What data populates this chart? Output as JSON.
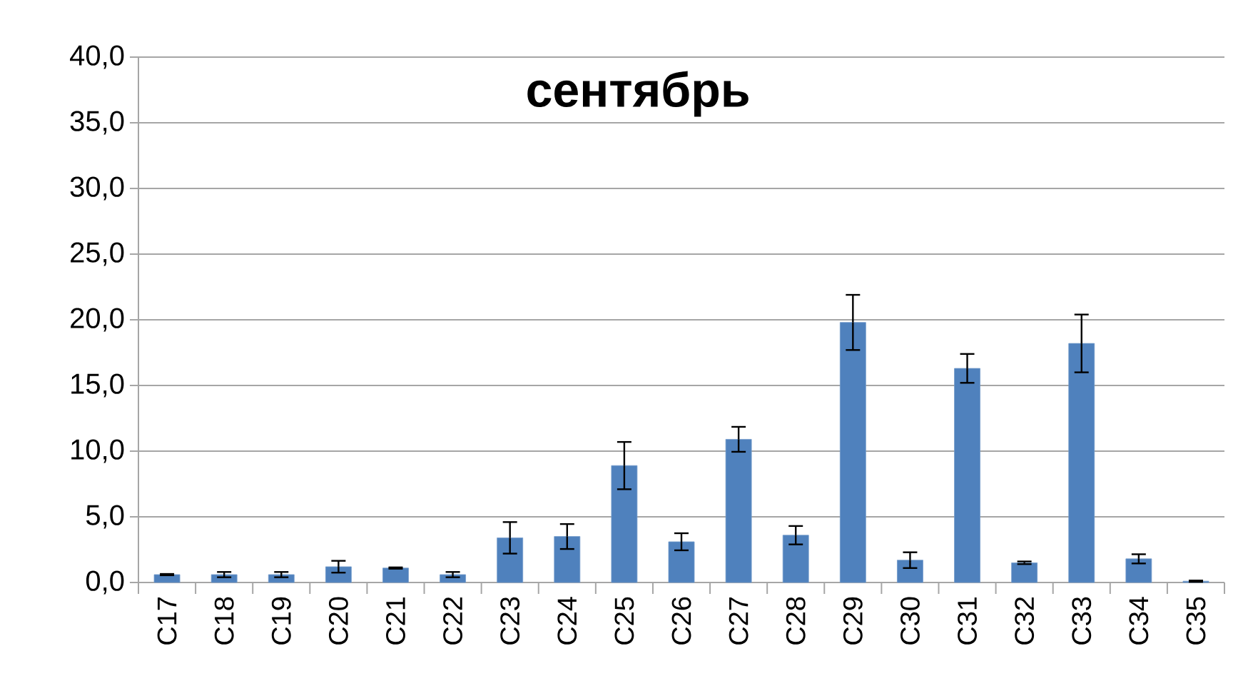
{
  "chart_data": {
    "type": "bar",
    "title": "сентябрь",
    "categories": [
      "C17",
      "C18",
      "C19",
      "C20",
      "C21",
      "C22",
      "C23",
      "C24",
      "C25",
      "C26",
      "C27",
      "C28",
      "C29",
      "C30",
      "C31",
      "C32",
      "C33",
      "C34",
      "C35"
    ],
    "values": [
      0.6,
      0.6,
      0.6,
      1.2,
      1.1,
      0.6,
      3.4,
      3.5,
      8.9,
      3.1,
      10.9,
      3.6,
      19.8,
      1.7,
      16.3,
      1.5,
      18.2,
      1.8,
      0.1
    ],
    "errors": [
      0.05,
      0.2,
      0.2,
      0.45,
      0.05,
      0.2,
      1.2,
      0.95,
      1.8,
      0.65,
      0.95,
      0.7,
      2.1,
      0.6,
      1.1,
      0.1,
      2.2,
      0.35,
      0.05
    ],
    "color": "#4f81bd",
    "ylim": [
      0,
      40
    ],
    "yticks": [
      {
        "value": 0,
        "label": "0,0"
      },
      {
        "value": 5,
        "label": "5,0"
      },
      {
        "value": 10,
        "label": "10,0"
      },
      {
        "value": 15,
        "label": "15,0"
      },
      {
        "value": 20,
        "label": "20,0"
      },
      {
        "value": 25,
        "label": "25,0"
      },
      {
        "value": 30,
        "label": "30,0"
      },
      {
        "value": 35,
        "label": "35,0"
      },
      {
        "value": 40,
        "label": "40,0"
      }
    ],
    "grid": "y"
  }
}
